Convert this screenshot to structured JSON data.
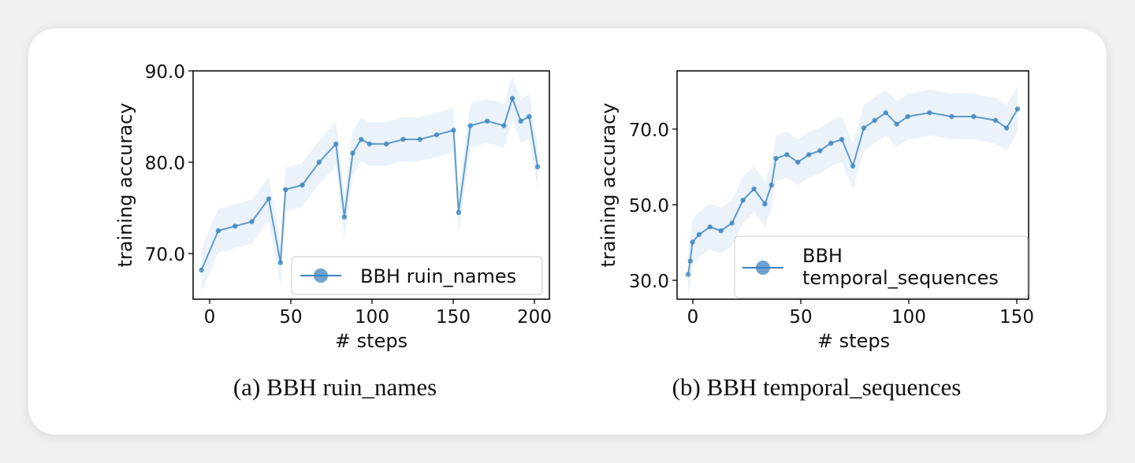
{
  "charts": [
    {
      "type": "line",
      "xlabel": "# steps",
      "ylabel": "training accuracy",
      "xlim": [
        -5,
        207
      ],
      "ylim": [
        65,
        90
      ],
      "xticks": [
        "0",
        "50",
        "100",
        "150",
        "200"
      ],
      "yticks": [
        "70.0",
        "80.0",
        "90.0"
      ],
      "legend": {
        "label": "BBH ruin_names",
        "position": "lower right"
      },
      "caption": "(a) BBH ruin_names",
      "color": "#3b84bf",
      "chart_data": {
        "type": "line",
        "series": [
          {
            "name": "BBH ruin_names",
            "x": [
              0,
              10,
              20,
              30,
              40,
              47,
              50,
              60,
              70,
              80,
              85,
              90,
              95,
              100,
              110,
              120,
              130,
              140,
              150,
              153,
              160,
              170,
              180,
              185,
              190,
              195,
              200
            ],
            "y": [
              68.2,
              72.5,
              73.0,
              73.5,
              76.0,
              69.0,
              77.0,
              77.5,
              80.0,
              82.0,
              74.0,
              81.0,
              82.5,
              82.0,
              82.0,
              82.5,
              82.5,
              83.0,
              83.5,
              74.5,
              84.0,
              84.5,
              84.0,
              87.0,
              84.5,
              85.0,
              79.5
            ]
          }
        ]
      }
    },
    {
      "type": "line",
      "xlabel": "# steps",
      "ylabel": "training accuracy",
      "xlim": [
        -5,
        155
      ],
      "ylim": [
        25,
        85
      ],
      "xticks": [
        "0",
        "50",
        "100",
        "150"
      ],
      "yticks": [
        "30.0",
        "50.0",
        "70.0"
      ],
      "legend": {
        "label_line1": "BBH",
        "label_line2": "temporal_sequences",
        "position": "lower right"
      },
      "caption": "(b) BBH temporal_sequences",
      "color": "#3b84bf",
      "chart_data": {
        "type": "line",
        "series": [
          {
            "name": "BBH temporal_sequences",
            "x": [
              0,
              1,
              2,
              5,
              10,
              15,
              20,
              25,
              30,
              35,
              38,
              40,
              45,
              50,
              55,
              60,
              65,
              70,
              75,
              80,
              85,
              90,
              95,
              100,
              110,
              120,
              130,
              140,
              145,
              150
            ],
            "y": [
              31.5,
              35.0,
              40.0,
              42.0,
              44.0,
              43.0,
              45.0,
              51.0,
              54.0,
              50.0,
              55.0,
              62.0,
              63.0,
              61.0,
              63.0,
              64.0,
              66.0,
              67.0,
              60.0,
              70.0,
              72.0,
              74.0,
              71.0,
              73.0,
              74.0,
              73.0,
              73.0,
              72.0,
              70.0,
              75.0
            ]
          }
        ]
      }
    }
  ]
}
